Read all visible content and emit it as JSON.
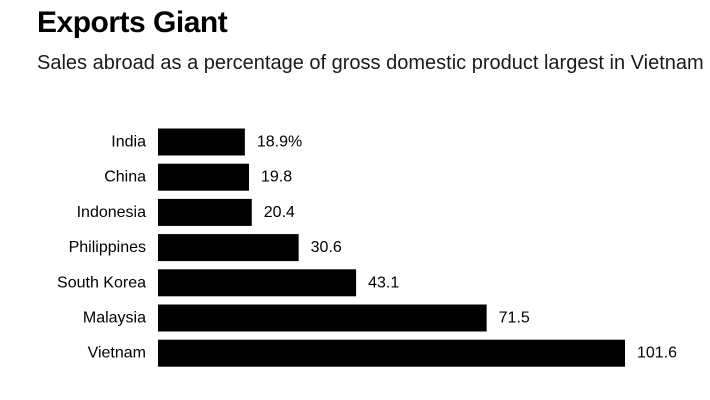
{
  "title": "Exports Giant",
  "subtitle": "Sales abroad as a percentage of gross domestic product largest in Vietnam",
  "colors": {
    "bar": "#000000",
    "text": "#000000",
    "background": "#ffffff"
  },
  "chart_data": {
    "type": "bar",
    "orientation": "horizontal",
    "title": "Exports Giant",
    "subtitle": "Sales abroad as a percentage of gross domestic product largest in Vietnam",
    "categories": [
      "India",
      "China",
      "Indonesia",
      "Philippines",
      "South Korea",
      "Malaysia",
      "Vietnam"
    ],
    "values": [
      18.9,
      19.8,
      20.4,
      30.6,
      43.1,
      71.5,
      101.6
    ],
    "value_labels": [
      "18.9%",
      "19.8",
      "20.4",
      "30.6",
      "43.1",
      "71.5",
      "101.6"
    ],
    "xlim": [
      0,
      101.6
    ],
    "grid": false,
    "legend": "none"
  }
}
